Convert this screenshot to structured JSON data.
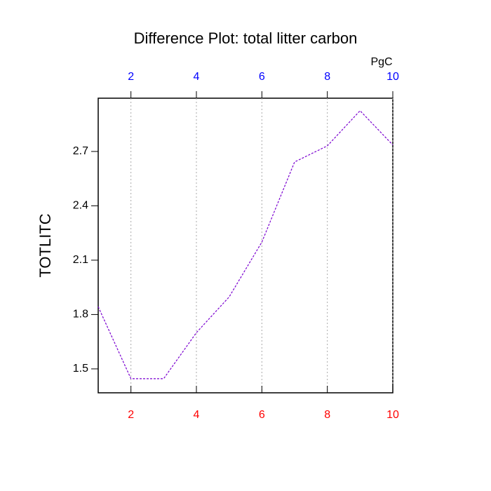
{
  "chart_data": {
    "type": "line",
    "title": "Difference Plot: total litter carbon",
    "units": "PgC",
    "ylabel": "TOTLITC",
    "x": [
      1,
      2,
      3,
      4,
      5,
      6,
      7,
      8,
      9,
      10
    ],
    "series": [
      {
        "name": "TOTLITC",
        "color": "#7a00d0",
        "values": [
          1.843,
          1.446,
          1.446,
          1.7,
          1.897,
          2.2,
          2.642,
          2.731,
          2.925,
          2.736
        ]
      }
    ],
    "xlim": [
      1,
      10
    ],
    "xticks": [
      2,
      4,
      6,
      8,
      10
    ],
    "xtick_color": "#ff0000",
    "x2ticks": [
      2,
      4,
      6,
      8,
      10
    ],
    "x2tick_color": "#0000ff",
    "ylim": [
      1.368,
      2.994
    ],
    "yticks": [
      1.5,
      1.8,
      2.1,
      2.4,
      2.7
    ],
    "grid": true
  }
}
